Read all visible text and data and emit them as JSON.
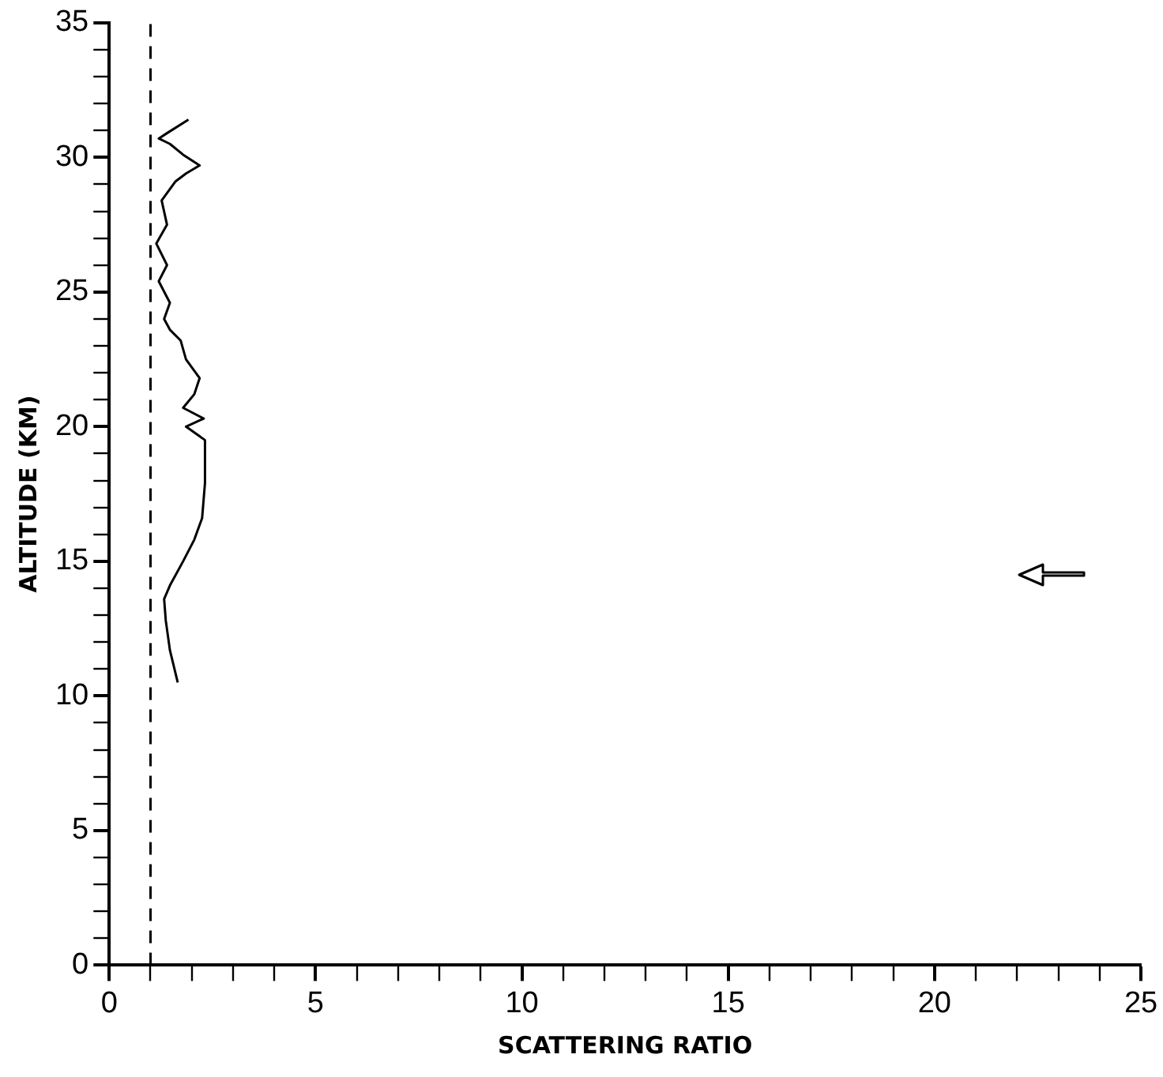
{
  "chart_data": {
    "type": "line",
    "xlabel": "SCATTERING RATIO",
    "ylabel": "ALTITUDE (KM)",
    "xlim": [
      0,
      25
    ],
    "xticks": [
      0,
      {
        "value": 1,
        "label": null
      },
      {
        "value": 2,
        "label": null
      },
      {
        "value": 3,
        "label": null
      },
      {
        "value": 4,
        "label": null
      },
      5,
      {
        "value": 6,
        "label": null
      },
      {
        "value": 7,
        "label": null
      },
      {
        "value": 8,
        "label": null
      },
      {
        "value": 9,
        "label": null
      },
      10,
      {
        "value": 11,
        "label": null
      },
      {
        "value": 12,
        "label": null
      },
      {
        "value": 13,
        "label": null
      },
      {
        "value": 14,
        "label": null
      },
      15,
      {
        "value": 16,
        "label": null
      },
      {
        "value": 17,
        "label": null
      },
      {
        "value": 18,
        "label": null
      },
      {
        "value": 19,
        "label": null
      },
      20,
      {
        "value": 21,
        "label": null
      },
      {
        "value": 22,
        "label": null
      },
      {
        "value": 23,
        "label": null
      },
      {
        "value": 24,
        "label": null
      },
      25
    ],
    "ylim": [
      0,
      35
    ],
    "yticks": [
      0,
      {
        "value": 1,
        "label": null
      },
      {
        "value": 2,
        "label": null
      },
      {
        "value": 3,
        "label": null
      },
      {
        "value": 4,
        "label": null
      },
      5,
      {
        "value": 6,
        "label": null
      },
      {
        "value": 7,
        "label": null
      },
      {
        "value": 8,
        "label": null
      },
      {
        "value": 9,
        "label": null
      },
      10,
      {
        "value": 11,
        "label": null
      },
      {
        "value": 12,
        "label": null
      },
      {
        "value": 13,
        "label": null
      },
      {
        "value": 14,
        "label": null
      },
      15,
      {
        "value": 16,
        "label": null
      },
      {
        "value": 17,
        "label": null
      },
      {
        "value": 18,
        "label": null
      },
      {
        "value": 19,
        "label": null
      },
      20,
      {
        "value": 21,
        "label": null
      },
      {
        "value": 22,
        "label": null
      },
      {
        "value": 23,
        "label": null
      },
      {
        "value": 24,
        "label": null
      },
      25,
      {
        "value": 26,
        "label": null
      },
      {
        "value": 27,
        "label": null
      },
      {
        "value": 28,
        "label": null
      },
      {
        "value": 29,
        "label": null
      },
      30,
      {
        "value": 31,
        "label": null
      },
      {
        "value": 32,
        "label": null
      },
      {
        "value": 33,
        "label": null
      },
      {
        "value": 34,
        "label": null
      },
      35
    ],
    "grid": false,
    "legend": false,
    "marker": "none",
    "line_style": "solid",
    "ref_lines": [
      {
        "axis": "x",
        "value": 1,
        "line_style": "dashed",
        "color": "#000000"
      }
    ],
    "series": [
      {
        "color": "#000000",
        "x": [
          1.66,
          1.47,
          1.37,
          1.33,
          1.47,
          1.79,
          2.06,
          2.25,
          2.32,
          2.32,
          1.86,
          2.29,
          1.79,
          2.06,
          2.19,
          1.86,
          1.73,
          1.47,
          1.33,
          1.47,
          1.2,
          1.4,
          1.14,
          1.4,
          1.27,
          1.6,
          1.86,
          2.19,
          1.79,
          1.47,
          1.2,
          1.4,
          1.92
        ],
        "values": [
          10.5,
          11.7,
          12.8,
          13.6,
          14.1,
          15.0,
          15.8,
          16.6,
          17.9,
          19.5,
          20.0,
          20.3,
          20.7,
          21.2,
          21.8,
          22.5,
          23.2,
          23.6,
          24.0,
          24.6,
          25.4,
          26.0,
          26.8,
          27.5,
          28.4,
          29.1,
          29.4,
          29.7,
          30.1,
          30.5,
          30.7,
          30.9,
          31.4
        ]
      }
    ]
  }
}
